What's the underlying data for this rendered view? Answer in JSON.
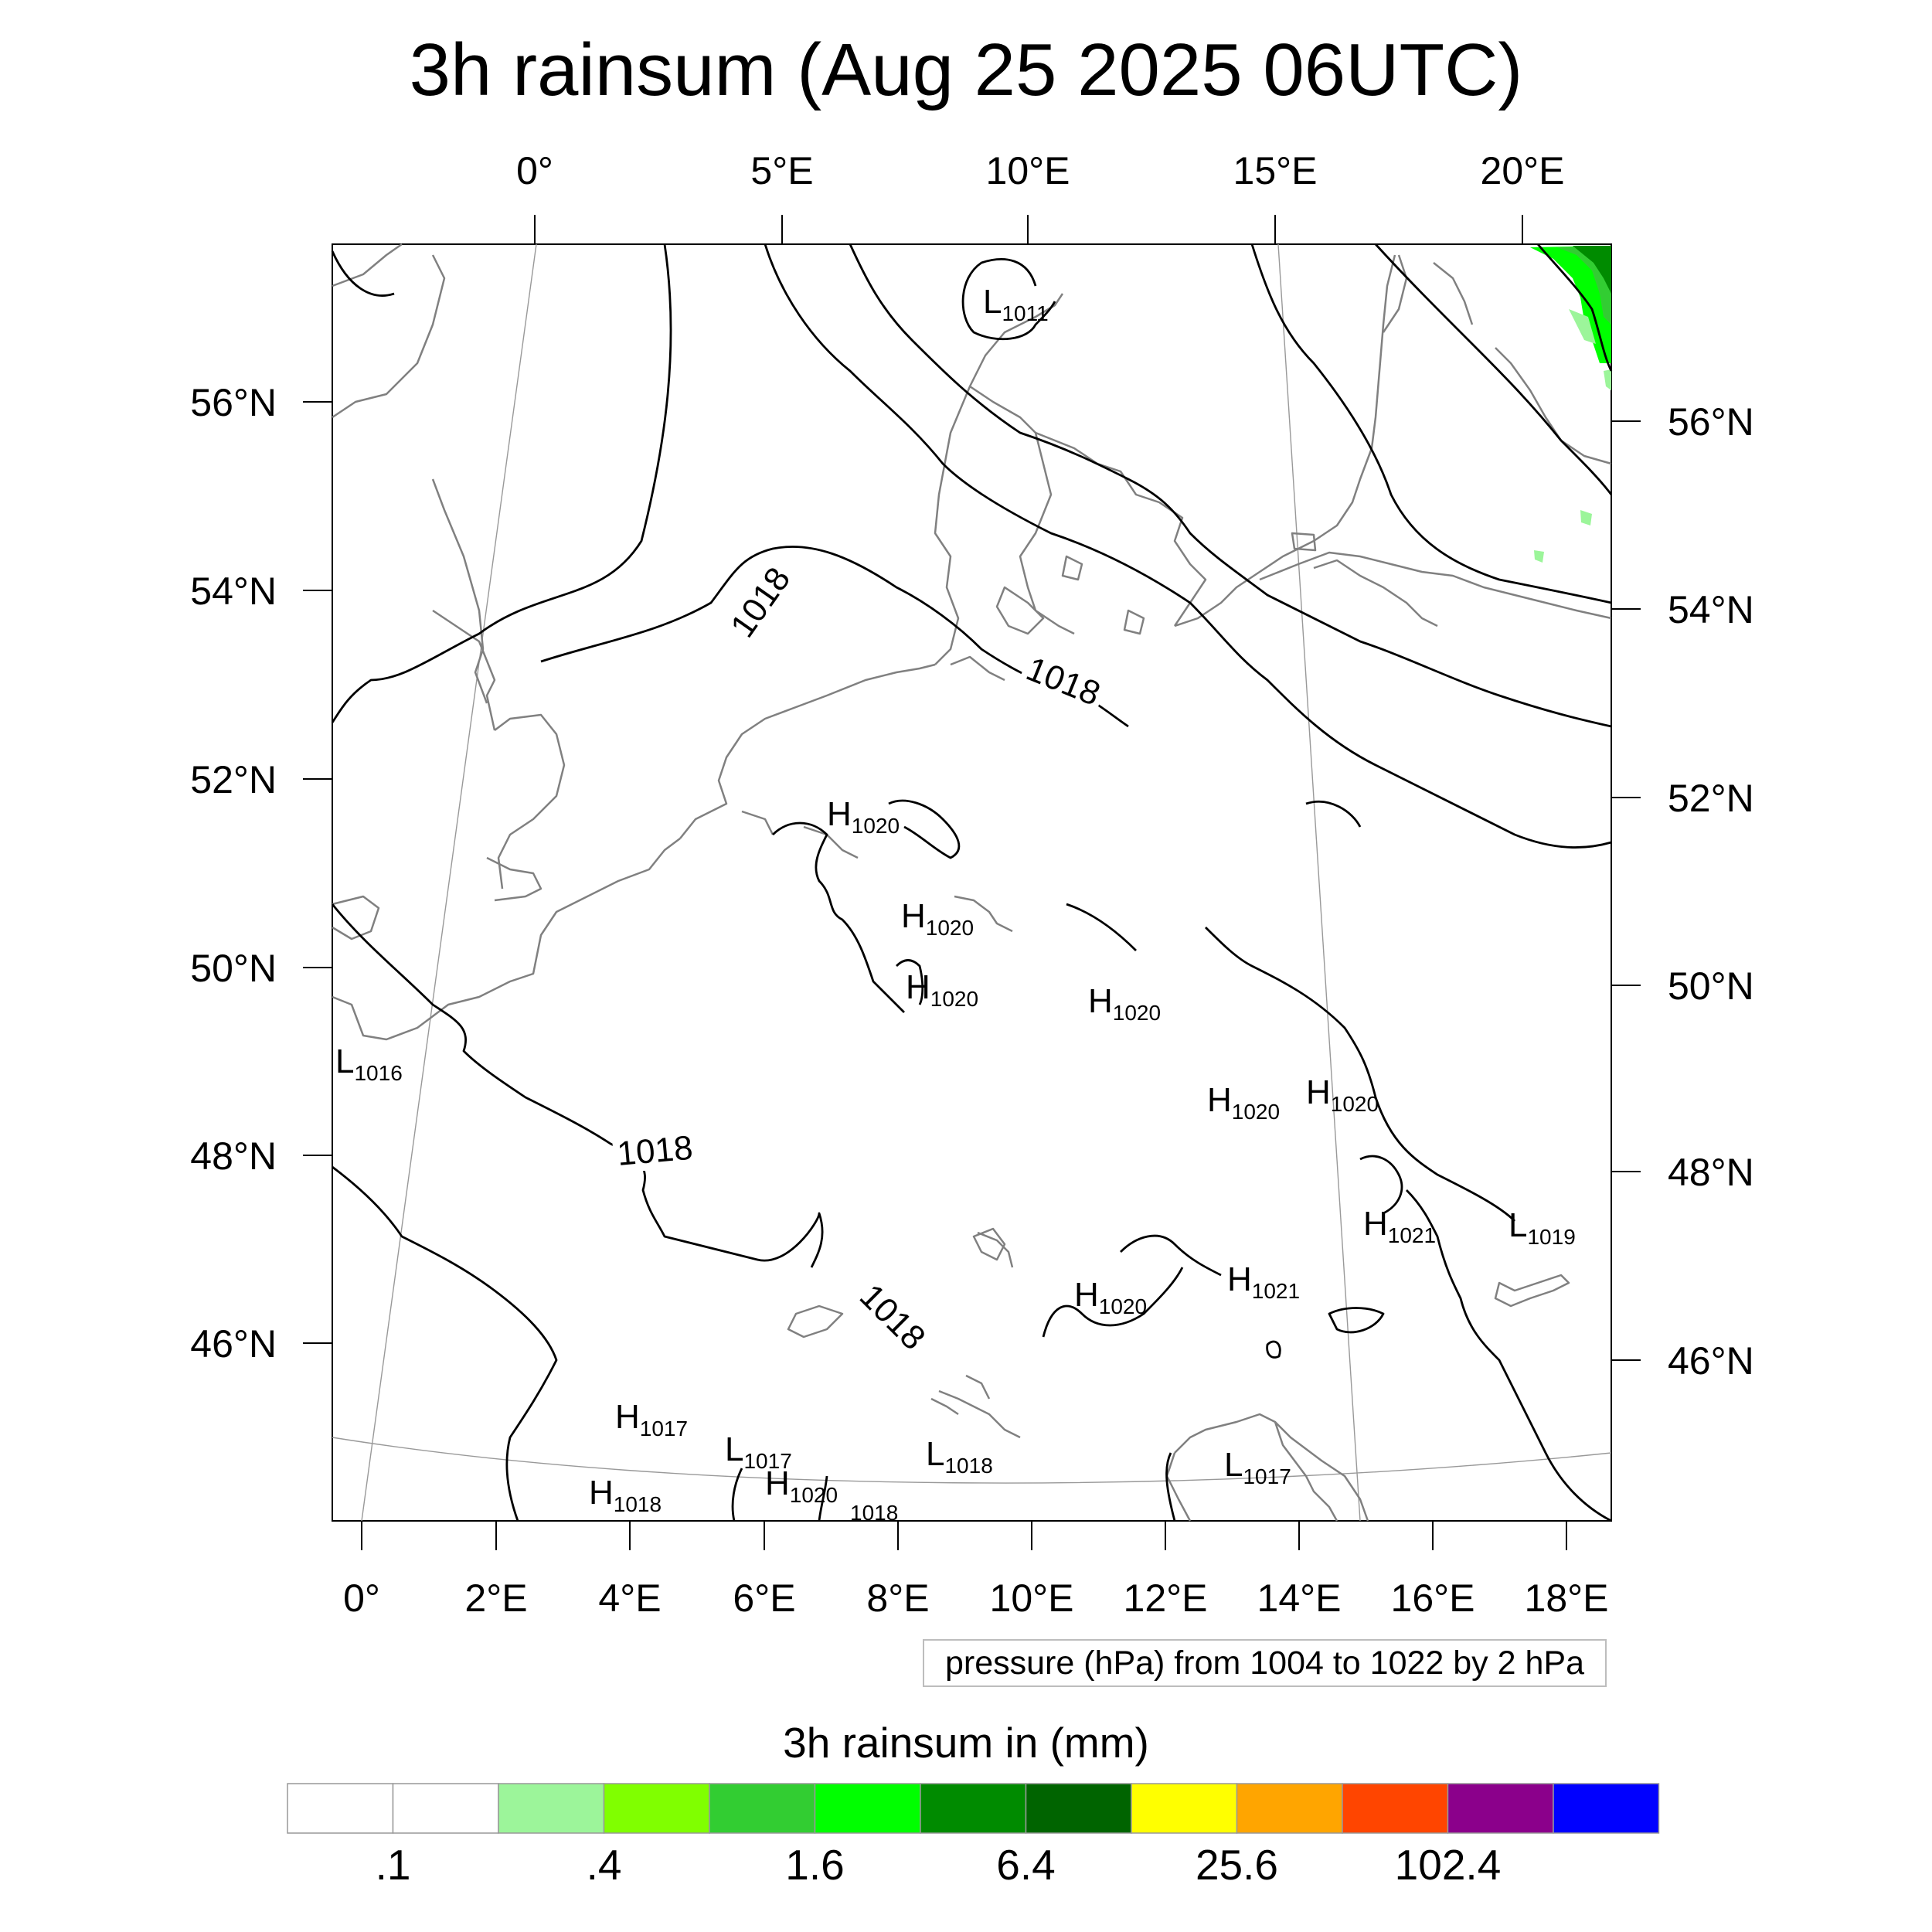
{
  "title": "3h rainsum (Aug 25 2025 06UTC)",
  "top_lon_labels": [
    "0°",
    "5°E",
    "10°E",
    "15°E",
    "20°E"
  ],
  "bottom_lon_labels": [
    "0°",
    "2°E",
    "4°E",
    "6°E",
    "8°E",
    "10°E",
    "12°E",
    "14°E",
    "16°E",
    "18°E"
  ],
  "left_lat_labels": [
    "56°N",
    "54°N",
    "52°N",
    "50°N",
    "48°N",
    "46°N"
  ],
  "right_lat_labels": [
    "56°N",
    "54°N",
    "52°N",
    "50°N",
    "48°N",
    "46°N"
  ],
  "contour_note": "pressure (hPa) from 1004 to 1022 by 2 hPa",
  "colorbar": {
    "title": "3h rainsum in (mm)",
    "colors": [
      "#ffffff",
      "#ffffff",
      "#9cf59a",
      "#80ff00",
      "#32cd32",
      "#00ff00",
      "#008b00",
      "#006400",
      "#ffff00",
      "#ffa500",
      "#ff4500",
      "#8b008b",
      "#0000ff"
    ],
    "tick_labels": [
      ".1",
      ".4",
      "1.6",
      "6.4",
      "25.6",
      "102.4"
    ]
  },
  "isobar_labels": [
    "1018",
    "1018",
    "1018",
    "1018"
  ],
  "pressure_centers": [
    {
      "type": "L",
      "value": "1011"
    },
    {
      "type": "H",
      "value": "1020"
    },
    {
      "type": "H",
      "value": "1020"
    },
    {
      "type": "H",
      "value": "1020"
    },
    {
      "type": "H",
      "value": "1020"
    },
    {
      "type": "L",
      "value": "1016"
    },
    {
      "type": "H",
      "value": "1020"
    },
    {
      "type": "H",
      "value": "1020"
    },
    {
      "type": "H",
      "value": "1021"
    },
    {
      "type": "L",
      "value": "1019"
    },
    {
      "type": "H",
      "value": "1021"
    },
    {
      "type": "H",
      "value": "1020"
    },
    {
      "type": "H",
      "value": "1017"
    },
    {
      "type": "L",
      "value": "1017"
    },
    {
      "type": "L",
      "value": "1018"
    },
    {
      "type": "L",
      "value": "1017"
    },
    {
      "type": "H",
      "value": "1018"
    },
    {
      "type": "H",
      "value": "1020"
    }
  ],
  "small_label": "1018"
}
